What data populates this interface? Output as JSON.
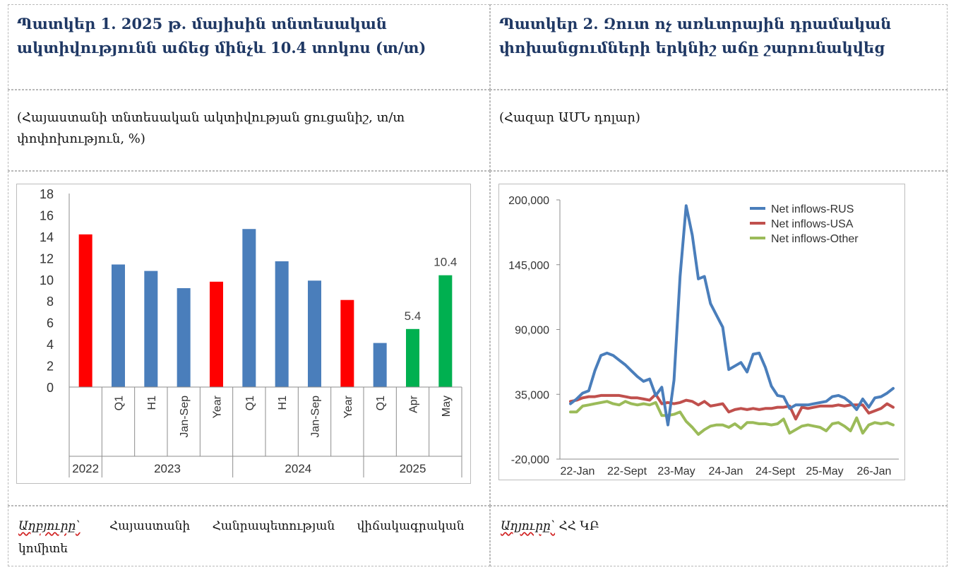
{
  "figure1": {
    "title": "Պատկեր 1. 2025 թ. մայիսին տնտեսական ակտիվությունն աճեց մինչև 10.4 տոկոս (տ/տ)",
    "subtitle": "(Հայաստանի տնտեսական ակտիվության ցուցանիշ, տ/տ փոփոխություն, %)",
    "source_label": "Աղբյուրը՝",
    "source_text": "Հայաստանի Հանրապետության վիճակագրական կոմիտե"
  },
  "figure2": {
    "title": "Պատկեր 2. Զուտ ոչ առևտրային դրամական փոխանցումների երկնիշ աճը շարունակվեց",
    "subtitle": "(Հազար ԱՄՆ դոլար)",
    "source_label": "Աղյուրը՝",
    "source_text": "ՀՀ ԿԲ"
  },
  "chart_data": [
    {
      "type": "bar",
      "categories": [
        "",
        "Q1",
        "H1",
        "Jan-Sep",
        "Year",
        "Q1",
        "H1",
        "Jan-Sep",
        "Year",
        "Q1",
        "Apr",
        "May"
      ],
      "groups": [
        {
          "label": "2022",
          "count": 1
        },
        {
          "label": "2023",
          "count": 4
        },
        {
          "label": "2024",
          "count": 4
        },
        {
          "label": "2025",
          "count": 3
        }
      ],
      "values": [
        14.2,
        11.4,
        10.8,
        9.2,
        9.8,
        14.7,
        11.7,
        9.9,
        8.1,
        4.1,
        5.4,
        10.4
      ],
      "colors": [
        "#ff0000",
        "#4a7ebb",
        "#4a7ebb",
        "#4a7ebb",
        "#ff0000",
        "#4a7ebb",
        "#4a7ebb",
        "#4a7ebb",
        "#ff0000",
        "#4a7ebb",
        "#00b050",
        "#00b050"
      ],
      "data_labels": [
        "",
        "",
        "",
        "",
        "",
        "",
        "",
        "",
        "",
        "",
        "5.4",
        "10.4"
      ],
      "yticks": [
        "0",
        "2",
        "4",
        "6",
        "8",
        "10",
        "12",
        "14",
        "16",
        "18"
      ],
      "ylim": [
        0,
        18
      ],
      "grid": false,
      "legend": "none"
    },
    {
      "type": "line",
      "x_tick_labels": [
        "22-Jan",
        "22-Sept",
        "23-May",
        "24-Jan",
        "24-Sept",
        "25-May",
        "26-Jan"
      ],
      "yticks": [
        "-20,000",
        "35,000",
        "90,000",
        "145,000",
        "200,000"
      ],
      "ylim": [
        -20000,
        200000
      ],
      "grid": false,
      "legend": "top-right",
      "series": [
        {
          "name": "Net inflows-RUS",
          "color": "#4a7ebb",
          "values": [
            27000,
            31000,
            36000,
            38000,
            55000,
            68000,
            70000,
            68000,
            64000,
            60000,
            55000,
            50000,
            46000,
            48000,
            34000,
            41000,
            9000,
            47000,
            135000,
            195000,
            170000,
            133000,
            135000,
            112000,
            102000,
            92000,
            56000,
            59000,
            62000,
            54000,
            69000,
            70000,
            58000,
            42000,
            34000,
            33000,
            23000,
            26000,
            26000,
            26000,
            27000,
            28000,
            29000,
            33000,
            34000,
            32000,
            28000,
            22000,
            31000,
            24000,
            32000,
            33000,
            36000,
            40000
          ]
        },
        {
          "name": "Net inflows-USA",
          "color": "#c0504d",
          "values": [
            29000,
            30000,
            32000,
            33000,
            33000,
            34000,
            34000,
            34000,
            34000,
            33000,
            32000,
            32000,
            31000,
            30000,
            35000,
            27000,
            28000,
            27000,
            28000,
            30000,
            29000,
            26000,
            29000,
            25000,
            26000,
            27000,
            20000,
            22000,
            23000,
            22000,
            23000,
            22000,
            23000,
            23000,
            24000,
            24000,
            25000,
            14000,
            24000,
            23000,
            24000,
            25000,
            25000,
            25000,
            26000,
            25000,
            26000,
            26000,
            26000,
            19000,
            21000,
            23000,
            27000,
            24000
          ]
        },
        {
          "name": "Net inflows-Other",
          "color": "#9bbb59",
          "values": [
            20000,
            20000,
            25000,
            26000,
            27000,
            28000,
            29000,
            27000,
            26000,
            29000,
            27000,
            26000,
            27000,
            26000,
            28000,
            17000,
            17000,
            18000,
            20000,
            12000,
            7000,
            1000,
            5000,
            8000,
            9000,
            9000,
            7000,
            10000,
            6000,
            11000,
            11000,
            10000,
            10000,
            9000,
            10000,
            14000,
            2000,
            5000,
            8000,
            9000,
            8000,
            7000,
            4000,
            10000,
            11000,
            8000,
            4000,
            15000,
            2000,
            9000,
            11000,
            10000,
            11000,
            9000
          ]
        }
      ]
    }
  ]
}
